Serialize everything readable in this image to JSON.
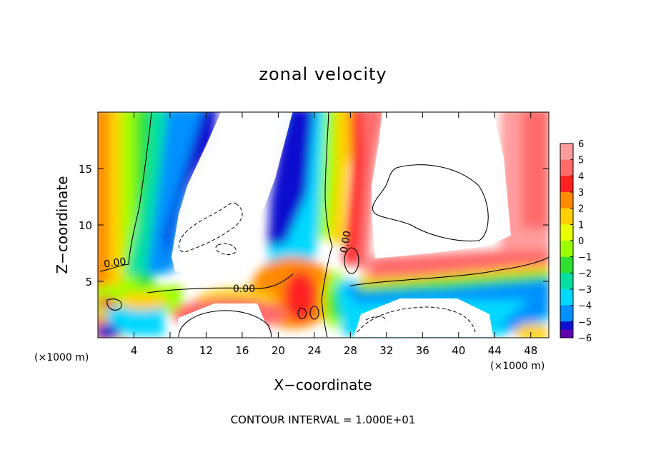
{
  "chart_data": {
    "type": "heatmap",
    "title": "zonal velocity",
    "xlabel": "X−coordinate",
    "ylabel": "Z−coordinate",
    "x_unit_left": "(×1000 m)",
    "x_unit_right": "(×1000 m)",
    "footer": "CONTOUR INTERVAL = 1.000E+01",
    "xlim": [
      0,
      50
    ],
    "ylim": [
      0,
      20
    ],
    "x_ticks": [
      "4",
      "8",
      "12",
      "16",
      "20",
      "24",
      "28",
      "32",
      "36",
      "40",
      "44",
      "48"
    ],
    "x_tick_values": [
      4,
      8,
      12,
      16,
      20,
      24,
      28,
      32,
      36,
      40,
      44,
      48
    ],
    "y_ticks": [
      "5",
      "10",
      "15"
    ],
    "y_tick_values": [
      5,
      10,
      15
    ],
    "contour_labels": [
      {
        "text": "0.00",
        "x": 2.2,
        "z": 6.6
      },
      {
        "text": "0.00",
        "x": 16.8,
        "z": 4.4
      },
      {
        "text": "0.00",
        "x": 26.6,
        "z": 8.6
      }
    ],
    "colorbar": {
      "labels": [
        "6",
        "5",
        "4",
        "3",
        "2",
        "1",
        "0",
        "−1",
        "−2",
        "−3",
        "−4",
        "−5",
        "−6"
      ],
      "values": [
        6,
        5,
        4,
        3,
        2,
        1,
        0,
        -1,
        -2,
        -3,
        -4,
        -5,
        -6
      ],
      "colors": [
        "#ff9c9c",
        "#ff6a6a",
        "#ff2020",
        "#ff8a00",
        "#ffd000",
        "#e8ff00",
        "#9cff00",
        "#30e030",
        "#00e0a0",
        "#00d8ff",
        "#0090ff",
        "#1010d0",
        "#6000b0"
      ]
    },
    "grid": false
  }
}
